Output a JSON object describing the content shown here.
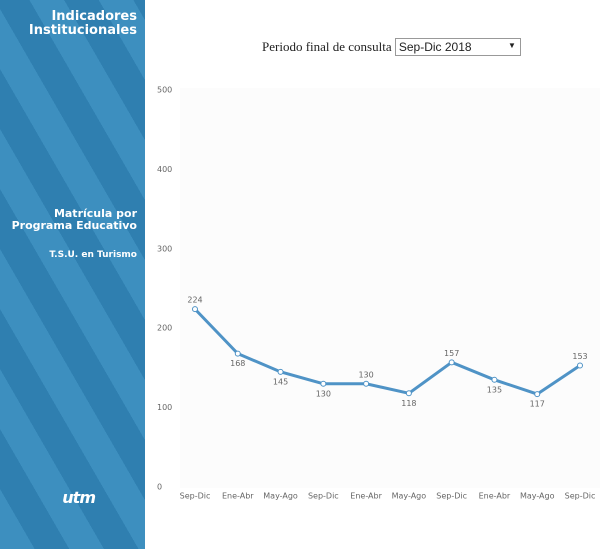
{
  "sidebar": {
    "title": "Indicadores Institucionales",
    "section": "Matrícula por Programa Educativo",
    "program": "T.S.U. en Turismo",
    "logo": "utm"
  },
  "filter": {
    "label": "Periodo final de consulta",
    "selected": "Sep-Dic 2018"
  },
  "chart_data": {
    "type": "line",
    "categories": [
      "Sep-Dic",
      "Ene-Abr",
      "May-Ago",
      "Sep-Dic",
      "Ene-Abr",
      "May-Ago",
      "Sep-Dic",
      "Ene-Abr",
      "May-Ago",
      "Sep-Dic"
    ],
    "values": [
      224,
      168,
      145,
      130,
      130,
      118,
      157,
      135,
      117,
      153
    ],
    "color": "#4f93c6",
    "ylim": [
      0,
      500
    ],
    "yticks": [
      0,
      100,
      200,
      300,
      400,
      500
    ],
    "grid": false
  }
}
